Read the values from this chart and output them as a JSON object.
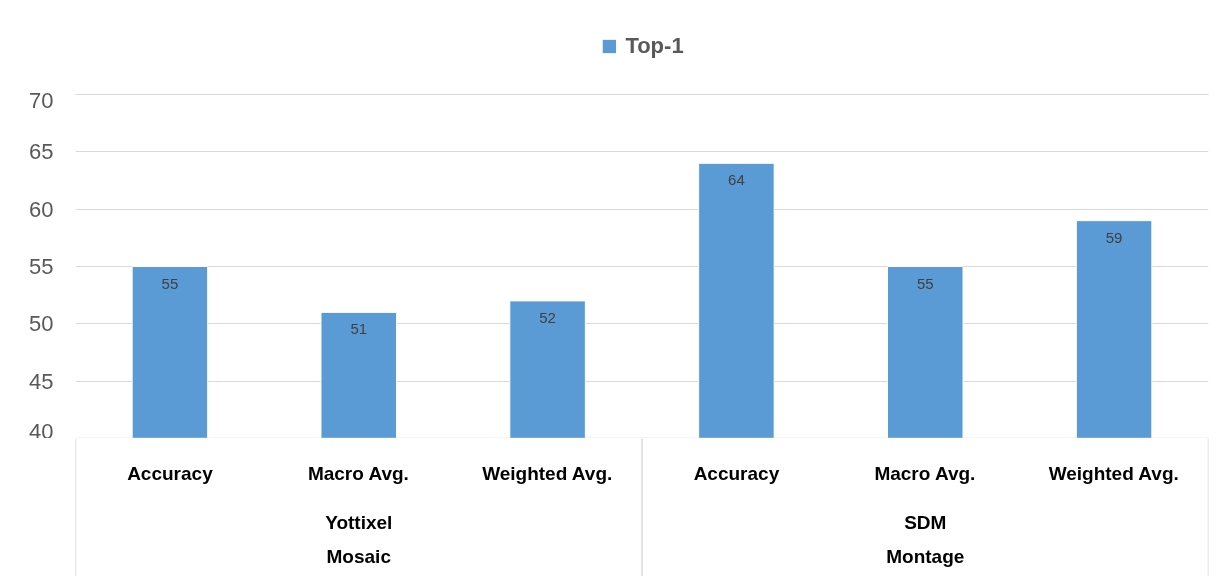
{
  "chart_data": {
    "type": "bar",
    "categories": [
      "Accuracy",
      "Macro Avg.",
      "Weighted Avg.",
      "Accuracy",
      "Macro Avg.",
      "Weighted Avg."
    ],
    "annotations": [
      "Yottixel\nMosaic",
      "SDM\nMontage"
    ],
    "series": [
      {
        "name": "Top-1",
        "color": "#5b9bd5",
        "values": [
          55,
          51,
          52,
          64,
          55,
          59
        ]
      }
    ],
    "ylim": [
      40,
      70
    ],
    "yticks": [
      40,
      45,
      50,
      55,
      60,
      65,
      70
    ],
    "grid": "y",
    "legend": "top",
    "data_labels": true
  }
}
